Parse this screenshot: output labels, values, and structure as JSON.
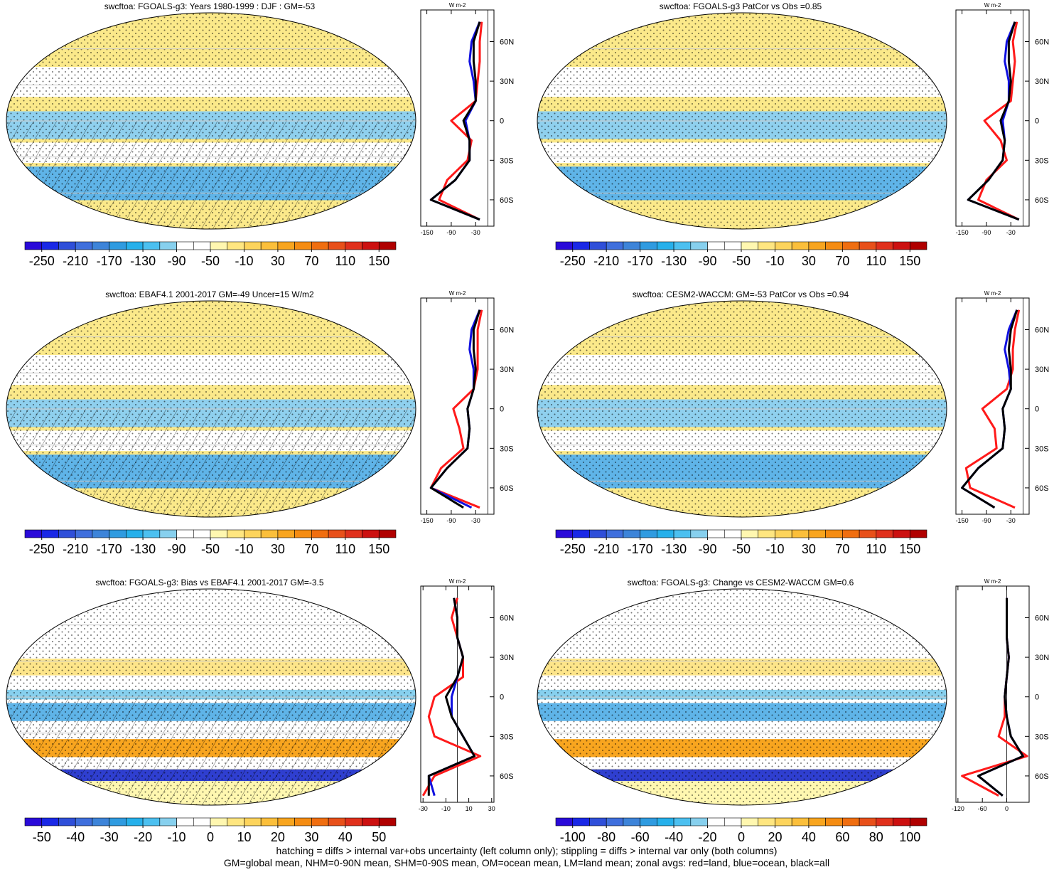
{
  "chart_data": [
    {
      "type": "map",
      "title": "swcftoa: FGOALS-g3: Years 1980-1999 : DJF : GM=-53",
      "colorbar": {
        "ticks": [
          -250,
          -210,
          -170,
          -130,
          -90,
          -50,
          -10,
          30,
          70,
          110,
          150
        ],
        "colors": [
          "#2a0ad9",
          "#1a28e6",
          "#2f4fd9",
          "#3f6fdd",
          "#3d84d9",
          "#2f9be0",
          "#26b0eb",
          "#4cc0f0",
          "#87d0ee",
          "#ffffff",
          "#ffffff",
          "#fff7b0",
          "#ffe680",
          "#fdd45c",
          "#fbbf3b",
          "#f8a51f",
          "#f58c12",
          "#f06e10",
          "#e8501a",
          "#e0301c",
          "#cc1010",
          "#b00000"
        ]
      },
      "zonal": {
        "unit_label": "W m-2",
        "xlim": [
          -165,
          15
        ],
        "xticks": [
          -150,
          -90,
          -30
        ],
        "ylim": [
          -80,
          84
        ],
        "yticks": [
          {
            "value": 60,
            "label": "60N"
          },
          {
            "value": 30,
            "label": "30N"
          },
          0,
          {
            "value": -30,
            "label": "30S"
          },
          {
            "value": -60,
            "label": "60S"
          }
        ],
        "lat": [
          -75,
          -60,
          -45,
          -30,
          -15,
          0,
          15,
          30,
          45,
          60,
          75
        ],
        "series": [
          {
            "name": "land",
            "color": "#ff1a1a",
            "values": [
              -20,
              -120,
              -100,
              -50,
              -40,
              -90,
              -30,
              -25,
              -20,
              -20,
              -15
            ]
          },
          {
            "name": "ocean",
            "color": "#1010e0",
            "values": [
              -20,
              -140,
              -80,
              -45,
              -45,
              -55,
              -30,
              -35,
              -45,
              -40,
              -20
            ]
          },
          {
            "name": "all",
            "color": "#000000",
            "values": [
              -20,
              -140,
              -80,
              -45,
              -45,
              -60,
              -30,
              -30,
              -35,
              -35,
              -20
            ]
          }
        ]
      }
    },
    {
      "type": "map",
      "title": "swcftoa: FGOALS-g3 PatCor vs Obs =0.85",
      "colorbar": {
        "ticks": [
          -250,
          -210,
          -170,
          -130,
          -90,
          -50,
          -10,
          30,
          70,
          110,
          150
        ],
        "colors": [
          "#2a0ad9",
          "#1a28e6",
          "#2f4fd9",
          "#3f6fdd",
          "#3d84d9",
          "#2f9be0",
          "#26b0eb",
          "#4cc0f0",
          "#87d0ee",
          "#ffffff",
          "#ffffff",
          "#fff7b0",
          "#ffe680",
          "#fdd45c",
          "#fbbf3b",
          "#f8a51f",
          "#f58c12",
          "#f06e10",
          "#e8501a",
          "#e0301c",
          "#cc1010",
          "#b00000"
        ]
      },
      "zonal": {
        "unit_label": "W m-2",
        "xlim": [
          -165,
          15
        ],
        "xticks": [
          -150,
          -90,
          -30
        ],
        "ylim": [
          -80,
          84
        ],
        "yticks": [
          {
            "value": 60,
            "label": "60N"
          },
          {
            "value": 30,
            "label": "30N"
          },
          0,
          {
            "value": -30,
            "label": "30S"
          },
          {
            "value": -60,
            "label": "60S"
          }
        ],
        "lat": [
          -75,
          -60,
          -45,
          -30,
          -15,
          0,
          15,
          30,
          45,
          60,
          75
        ],
        "series": [
          {
            "name": "land",
            "color": "#ff1a1a",
            "values": [
              -10,
              -110,
              -90,
              -40,
              -55,
              -95,
              -30,
              -25,
              -20,
              -25,
              -15
            ]
          },
          {
            "name": "ocean",
            "color": "#1010e0",
            "values": [
              -10,
              -135,
              -85,
              -50,
              -45,
              -50,
              -35,
              -35,
              -45,
              -40,
              -20
            ]
          },
          {
            "name": "all",
            "color": "#000000",
            "values": [
              -10,
              -135,
              -85,
              -50,
              -45,
              -55,
              -35,
              -30,
              -35,
              -35,
              -20
            ]
          }
        ]
      }
    },
    {
      "type": "map",
      "title": "swcftoa: EBAF4.1 2001-2017 GM=-49 Uncer=15 W/m2",
      "colorbar": {
        "ticks": [
          -250,
          -210,
          -170,
          -130,
          -90,
          -50,
          -10,
          30,
          70,
          110,
          150
        ],
        "colors": [
          "#2a0ad9",
          "#1a28e6",
          "#2f4fd9",
          "#3f6fdd",
          "#3d84d9",
          "#2f9be0",
          "#26b0eb",
          "#4cc0f0",
          "#87d0ee",
          "#ffffff",
          "#ffffff",
          "#fff7b0",
          "#ffe680",
          "#fdd45c",
          "#fbbf3b",
          "#f8a51f",
          "#f58c12",
          "#f06e10",
          "#e8501a",
          "#e0301c",
          "#cc1010",
          "#b00000"
        ]
      },
      "zonal": {
        "unit_label": "W m-2",
        "xlim": [
          -165,
          15
        ],
        "xticks": [
          -150,
          -90,
          -30
        ],
        "ylim": [
          -80,
          84
        ],
        "yticks": [
          {
            "value": 60,
            "label": "60N"
          },
          {
            "value": 30,
            "label": "30N"
          },
          0,
          {
            "value": -30,
            "label": "30S"
          },
          {
            "value": -60,
            "label": "60S"
          }
        ],
        "lat": [
          -75,
          -60,
          -45,
          -30,
          -15,
          0,
          15,
          30,
          45,
          60,
          75
        ],
        "series": [
          {
            "name": "land",
            "color": "#ff1a1a",
            "values": [
              -20,
              -140,
              -115,
              -60,
              -70,
              -85,
              -35,
              -25,
              -25,
              -25,
              -15
            ]
          },
          {
            "name": "ocean",
            "color": "#1010e0",
            "values": [
              -40,
              -140,
              -100,
              -50,
              -45,
              -50,
              -35,
              -35,
              -45,
              -40,
              -20
            ]
          },
          {
            "name": "all",
            "color": "#000000",
            "values": [
              -60,
              -140,
              -100,
              -50,
              -45,
              -50,
              -35,
              -30,
              -35,
              -35,
              -20
            ]
          }
        ]
      }
    },
    {
      "type": "map",
      "title": "swcftoa: CESM2-WACCM: GM=-53 PatCor vs Obs =0.94",
      "colorbar": {
        "ticks": [
          -250,
          -210,
          -170,
          -130,
          -90,
          -50,
          -10,
          30,
          70,
          110,
          150
        ],
        "colors": [
          "#2a0ad9",
          "#1a28e6",
          "#2f4fd9",
          "#3f6fdd",
          "#3d84d9",
          "#2f9be0",
          "#26b0eb",
          "#4cc0f0",
          "#87d0ee",
          "#ffffff",
          "#ffffff",
          "#fff7b0",
          "#ffe680",
          "#fdd45c",
          "#fbbf3b",
          "#f8a51f",
          "#f58c12",
          "#f06e10",
          "#e8501a",
          "#e0301c",
          "#cc1010",
          "#b00000"
        ]
      },
      "zonal": {
        "unit_label": "W m-2",
        "xlim": [
          -165,
          15
        ],
        "xticks": [
          -150,
          -90,
          -30
        ],
        "ylim": [
          -80,
          84
        ],
        "yticks": [
          {
            "value": 60,
            "label": "60N"
          },
          {
            "value": 30,
            "label": "30N"
          },
          0,
          {
            "value": -30,
            "label": "30S"
          },
          {
            "value": -60,
            "label": "60S"
          }
        ],
        "lat": [
          -75,
          -60,
          -45,
          -30,
          -15,
          0,
          15,
          30,
          45,
          60,
          75
        ],
        "series": [
          {
            "name": "land",
            "color": "#ff1a1a",
            "values": [
              -20,
              -130,
              -140,
              -65,
              -70,
              -100,
              -40,
              -25,
              -25,
              -20,
              -10
            ]
          },
          {
            "name": "ocean",
            "color": "#1010e0",
            "values": [
              -70,
              -150,
              -110,
              -50,
              -45,
              -50,
              -30,
              -35,
              -45,
              -35,
              -15
            ]
          },
          {
            "name": "all",
            "color": "#000000",
            "values": [
              -70,
              -150,
              -110,
              -50,
              -45,
              -50,
              -30,
              -30,
              -35,
              -30,
              -15
            ]
          }
        ]
      }
    },
    {
      "type": "bias-map",
      "title": "swcftoa: FGOALS-g3: Bias vs EBAF4.1 2001-2017 GM=-3.5",
      "colorbar": {
        "ticks": [
          -50,
          -40,
          -30,
          -20,
          -10,
          0,
          10,
          20,
          30,
          40,
          50
        ],
        "colors": [
          "#2a0ad9",
          "#1a28e6",
          "#2f4fd9",
          "#3f6fdd",
          "#3d84d9",
          "#2f9be0",
          "#26b0eb",
          "#4cc0f0",
          "#87d0ee",
          "#ffffff",
          "#ffffff",
          "#fff7b0",
          "#ffe680",
          "#fdd45c",
          "#fbbf3b",
          "#f8a51f",
          "#f58c12",
          "#f06e10",
          "#e8501a",
          "#e0301c",
          "#cc1010",
          "#b00000"
        ]
      },
      "zonal": {
        "unit_label": "W m-2",
        "xlim": [
          -32,
          32
        ],
        "xticks": [
          -30,
          -10,
          10,
          30
        ],
        "ylim": [
          -80,
          84
        ],
        "yticks": [
          {
            "value": 60,
            "label": "60N"
          },
          {
            "value": 30,
            "label": "30N"
          },
          0,
          {
            "value": -30,
            "label": "30S"
          },
          {
            "value": -60,
            "label": "60S"
          }
        ],
        "lat": [
          -75,
          -60,
          -45,
          -30,
          -15,
          0,
          15,
          30,
          45,
          60,
          75
        ],
        "series": [
          {
            "name": "land",
            "color": "#ff1a1a",
            "values": [
              -30,
              -20,
              20,
              -20,
              -25,
              -20,
              5,
              5,
              0,
              -5,
              0
            ]
          },
          {
            "name": "ocean",
            "color": "#1010e0",
            "values": [
              -20,
              -25,
              15,
              5,
              -5,
              -5,
              0,
              5,
              0,
              0,
              -3
            ]
          },
          {
            "name": "all",
            "color": "#000000",
            "values": [
              -25,
              -25,
              15,
              5,
              -5,
              -10,
              0,
              5,
              0,
              0,
              -3
            ]
          }
        ]
      }
    },
    {
      "type": "bias-map",
      "title": "swcftoa: FGOALS-g3: Change vs CESM2-WACCM GM=0.6",
      "colorbar": {
        "ticks": [
          -100,
          -80,
          -60,
          -40,
          -20,
          0,
          20,
          40,
          60,
          80,
          100
        ],
        "colors": [
          "#2a0ad9",
          "#1a28e6",
          "#2f4fd9",
          "#3f6fdd",
          "#3d84d9",
          "#2f9be0",
          "#26b0eb",
          "#4cc0f0",
          "#87d0ee",
          "#ffffff",
          "#ffffff",
          "#fff7b0",
          "#ffe680",
          "#fdd45c",
          "#fbbf3b",
          "#f8a51f",
          "#f58c12",
          "#f06e10",
          "#e8501a",
          "#e0301c",
          "#cc1010",
          "#b00000"
        ]
      },
      "zonal": {
        "unit_label": "W m-2",
        "xlim": [
          -125,
          55
        ],
        "xticks": [
          -120,
          -60,
          0
        ],
        "ylim": [
          -80,
          84
        ],
        "yticks": [
          {
            "value": 60,
            "label": "60N"
          },
          {
            "value": 30,
            "label": "30N"
          },
          0,
          {
            "value": -30,
            "label": "30S"
          },
          {
            "value": -60,
            "label": "60S"
          }
        ],
        "lat": [
          -75,
          -60,
          -45,
          -30,
          -15,
          0,
          15,
          30,
          45,
          60,
          75
        ],
        "series": [
          {
            "name": "land",
            "color": "#ff1a1a",
            "values": [
              -20,
              -110,
              50,
              -20,
              -5,
              -5,
              0,
              5,
              0,
              0,
              0
            ]
          },
          {
            "name": "ocean",
            "color": "#1010e0",
            "values": [
              -10,
              -70,
              40,
              10,
              0,
              -5,
              0,
              5,
              0,
              0,
              0
            ]
          },
          {
            "name": "all",
            "color": "#000000",
            "values": [
              -10,
              -70,
              40,
              10,
              0,
              -5,
              0,
              5,
              0,
              0,
              0
            ]
          }
        ]
      }
    }
  ],
  "footer": [
    "hatching = diffs > internal var+obs uncertainty (left column only); stippling = diffs > internal var only (both columns)",
    "GM=global mean, NHM=0-90N mean, SHM=0-90S mean, OM=ocean mean, LM=land mean; zonal avgs: red=land, blue=ocean, black=all"
  ]
}
